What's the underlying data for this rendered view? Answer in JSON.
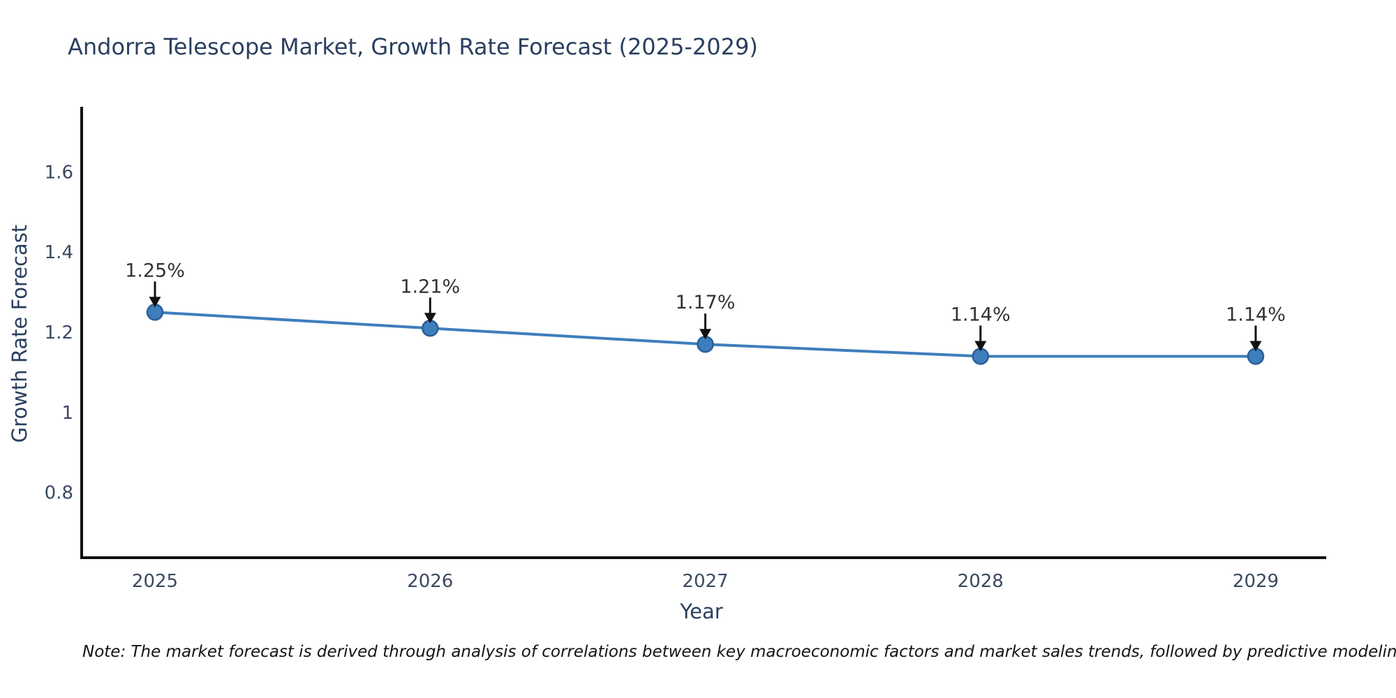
{
  "chart_data": {
    "type": "line",
    "title": "Andorra Telescope Market, Growth Rate Forecast (2025-2029)",
    "xlabel": "Year",
    "ylabel": "Growth Rate Forecast",
    "x": [
      2025,
      2026,
      2027,
      2028,
      2029
    ],
    "series": [
      {
        "name": "Growth Rate Forecast",
        "values": [
          1.25,
          1.21,
          1.17,
          1.14,
          1.14
        ]
      }
    ],
    "point_labels": [
      "1.25%",
      "1.21%",
      "1.17%",
      "1.14%",
      "1.14%"
    ],
    "xtick_labels": [
      "2025",
      "2026",
      "2027",
      "2028",
      "2029"
    ],
    "ytick_labels": [
      "0.8",
      "1",
      "1.2",
      "1.4",
      "1.6"
    ],
    "ytick_values": [
      0.8,
      1.0,
      1.2,
      1.4,
      1.6
    ],
    "ylim": [
      0.64,
      1.76
    ],
    "grid": false,
    "legend_position": "none",
    "annotation_style": "value label above point with black arrow pointing down to marker",
    "note": "Note: The market forecast is derived through analysis of correlations between key macroeconomic factors and market sales trends, followed by predictive modeling to project future sales",
    "colors": {
      "line": "#3e7ebc",
      "marker_fill": "#3e7ebc",
      "marker_edge": "#2b5f96",
      "arrow": "#111111",
      "axis_line": "#111111",
      "title_text": "#2a3f5f",
      "tick_text": "#3b4a5f",
      "annotation_text": "#333333",
      "background": "#ffffff"
    }
  }
}
